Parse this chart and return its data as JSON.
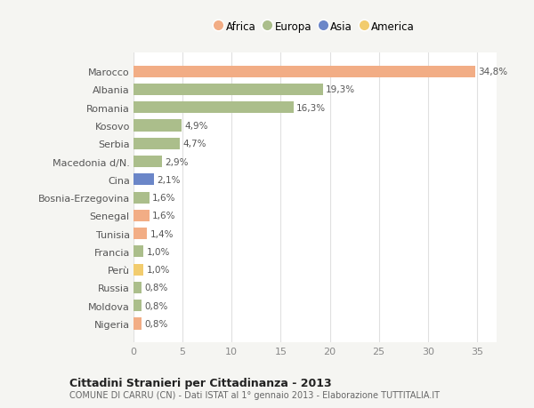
{
  "countries": [
    "Marocco",
    "Albania",
    "Romania",
    "Kosovo",
    "Serbia",
    "Macedonia d/N.",
    "Cina",
    "Bosnia-Erzegovina",
    "Senegal",
    "Tunisia",
    "Francia",
    "Perù",
    "Russia",
    "Moldova",
    "Nigeria"
  ],
  "values": [
    34.8,
    19.3,
    16.3,
    4.9,
    4.7,
    2.9,
    2.1,
    1.6,
    1.6,
    1.4,
    1.0,
    1.0,
    0.8,
    0.8,
    0.8
  ],
  "labels": [
    "34,8%",
    "19,3%",
    "16,3%",
    "4,9%",
    "4,7%",
    "2,9%",
    "2,1%",
    "1,6%",
    "1,6%",
    "1,4%",
    "1,0%",
    "1,0%",
    "0,8%",
    "0,8%",
    "0,8%"
  ],
  "continents": [
    "Africa",
    "Europa",
    "Europa",
    "Europa",
    "Europa",
    "Europa",
    "Asia",
    "Europa",
    "Africa",
    "Africa",
    "Europa",
    "America",
    "Europa",
    "Europa",
    "Africa"
  ],
  "colors": {
    "Africa": "#F2AD85",
    "Europa": "#ABBE8B",
    "Asia": "#6B86C8",
    "America": "#F2CC6E"
  },
  "legend_order": [
    "Africa",
    "Europa",
    "Asia",
    "America"
  ],
  "title": "Cittadini Stranieri per Cittadinanza - 2013",
  "subtitle": "COMUNE DI CARRU (CN) - Dati ISTAT al 1° gennaio 2013 - Elaborazione TUTTITALIA.IT",
  "xlim": [
    0,
    37
  ],
  "xticks": [
    0,
    5,
    10,
    15,
    20,
    25,
    30,
    35
  ],
  "bg_color": "#f5f5f2",
  "plot_bg_color": "#ffffff",
  "grid_color": "#e0e0e0",
  "bar_height": 0.65
}
